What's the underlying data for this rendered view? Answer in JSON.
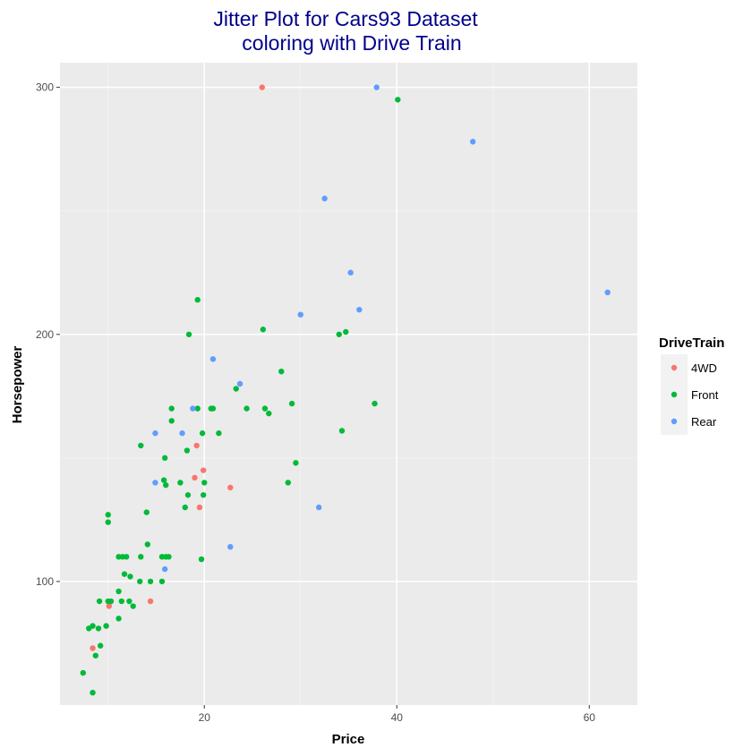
{
  "chart_data": {
    "type": "scatter",
    "title": "Jitter Plot for Cars93 Dataset",
    "subtitle": "coloring with Drive Train",
    "xlabel": "Price",
    "ylabel": "Horsepower",
    "xlim": [
      5,
      65
    ],
    "ylim": [
      50,
      310
    ],
    "xticks": [
      20,
      40,
      60
    ],
    "yticks": [
      100,
      200,
      300
    ],
    "grid": true,
    "background": "#ebebeb",
    "title_color": "#00008b",
    "legend": {
      "title": "DriveTrain",
      "position": "right",
      "entries": [
        "4WD",
        "Front",
        "Rear"
      ]
    },
    "series": [
      {
        "name": "4WD",
        "color": "#f8766d",
        "points": [
          [
            26.0,
            300
          ],
          [
            19.2,
            155
          ],
          [
            19.9,
            145
          ],
          [
            19.0,
            142
          ],
          [
            22.7,
            138
          ],
          [
            19.5,
            130
          ],
          [
            14.4,
            92
          ],
          [
            10.1,
            90
          ],
          [
            8.4,
            73
          ]
        ]
      },
      {
        "name": "Front",
        "color": "#00ba38",
        "points": [
          [
            40.1,
            295
          ],
          [
            19.3,
            214
          ],
          [
            18.4,
            200
          ],
          [
            26.1,
            202
          ],
          [
            34.0,
            200
          ],
          [
            34.7,
            201
          ],
          [
            28.0,
            185
          ],
          [
            23.3,
            178
          ],
          [
            16.6,
            170
          ],
          [
            19.3,
            170
          ],
          [
            20.7,
            170
          ],
          [
            20.9,
            170
          ],
          [
            24.4,
            170
          ],
          [
            26.3,
            170
          ],
          [
            26.7,
            168
          ],
          [
            29.1,
            172
          ],
          [
            37.7,
            172
          ],
          [
            16.6,
            165
          ],
          [
            19.8,
            160
          ],
          [
            21.5,
            160
          ],
          [
            34.3,
            161
          ],
          [
            13.4,
            155
          ],
          [
            18.2,
            153
          ],
          [
            15.9,
            150
          ],
          [
            29.5,
            148
          ],
          [
            15.8,
            141
          ],
          [
            16.0,
            139
          ],
          [
            17.5,
            140
          ],
          [
            20.0,
            140
          ],
          [
            28.7,
            140
          ],
          [
            18.3,
            135
          ],
          [
            19.9,
            135
          ],
          [
            18.0,
            130
          ],
          [
            14.0,
            128
          ],
          [
            10.0,
            127
          ],
          [
            10.0,
            124
          ],
          [
            14.1,
            115
          ],
          [
            11.1,
            110
          ],
          [
            11.5,
            110
          ],
          [
            11.9,
            110
          ],
          [
            13.4,
            110
          ],
          [
            15.6,
            110
          ],
          [
            16.0,
            110
          ],
          [
            16.3,
            110
          ],
          [
            19.7,
            109
          ],
          [
            11.7,
            103
          ],
          [
            12.3,
            102
          ],
          [
            13.3,
            100
          ],
          [
            14.4,
            100
          ],
          [
            15.6,
            100
          ],
          [
            11.1,
            96
          ],
          [
            9.1,
            92
          ],
          [
            10.0,
            92
          ],
          [
            10.3,
            92
          ],
          [
            11.4,
            92
          ],
          [
            12.2,
            92
          ],
          [
            12.6,
            90
          ],
          [
            11.1,
            85
          ],
          [
            9.8,
            82
          ],
          [
            8.4,
            82
          ],
          [
            8.0,
            81
          ],
          [
            9.0,
            81
          ],
          [
            9.2,
            74
          ],
          [
            8.7,
            70
          ],
          [
            7.4,
            63
          ],
          [
            8.4,
            55
          ]
        ]
      },
      {
        "name": "Rear",
        "color": "#619cff",
        "points": [
          [
            37.9,
            300
          ],
          [
            47.9,
            278
          ],
          [
            32.5,
            255
          ],
          [
            35.2,
            225
          ],
          [
            61.9,
            217
          ],
          [
            36.1,
            210
          ],
          [
            30.0,
            208
          ],
          [
            20.9,
            190
          ],
          [
            23.7,
            180
          ],
          [
            18.8,
            170
          ],
          [
            14.9,
            160
          ],
          [
            17.7,
            160
          ],
          [
            31.9,
            130
          ],
          [
            14.9,
            140
          ],
          [
            22.7,
            114
          ],
          [
            15.9,
            105
          ]
        ]
      }
    ]
  }
}
